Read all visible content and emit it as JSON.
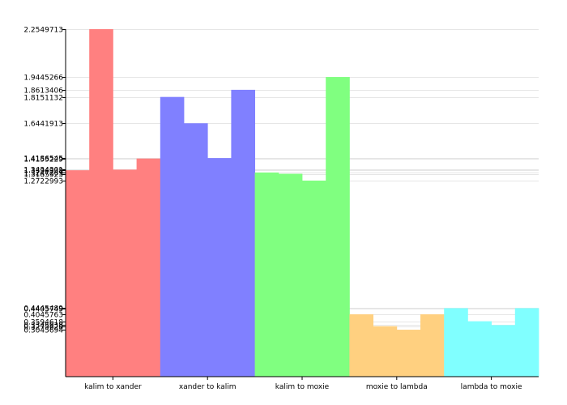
{
  "chart_data": {
    "type": "bar",
    "title": "",
    "xlabel": "",
    "ylabel": "",
    "ylim": [
      0,
      2.2549713
    ],
    "grid": true,
    "legend": "none",
    "categories": [
      "kalim to xander",
      "xander to kalim",
      "kalim to moxie",
      "moxie to lambda",
      "lambda to moxie"
    ],
    "groups": [
      {
        "category": "kalim to xander",
        "color": "#ff8080",
        "values": [
          1.3394,
          2.2549713,
          1.3434,
          1.4155
        ]
      },
      {
        "category": "xander to kalim",
        "color": "#8080ff",
        "values": [
          1.8151132,
          1.6441913,
          1.41865,
          1.8613406
        ]
      },
      {
        "category": "kalim to moxie",
        "color": "#80ff80",
        "values": [
          1.3247,
          1.3165,
          1.2722993,
          1.9445266
        ]
      },
      {
        "category": "moxie to lambda",
        "color": "#ffd080",
        "values": [
          0.4045,
          0.3275,
          0.3045,
          0.4045
        ]
      },
      {
        "category": "lambda to moxie",
        "color": "#80ffff",
        "values": [
          0.4445,
          0.3595,
          0.3345,
          0.4445
        ]
      }
    ],
    "y_ticks": [
      {
        "value": 2.2549713,
        "label": "2.2549713"
      },
      {
        "value": 1.9445266,
        "label": "1.9445266"
      },
      {
        "value": 1.8613406,
        "label": "1.8613406"
      },
      {
        "value": 1.8151132,
        "label": "1.8151132"
      },
      {
        "value": 1.6441913,
        "label": "1.6441913"
      },
      {
        "value": 1.41865,
        "label": "1.4186545"
      },
      {
        "value": 1.4155,
        "label": "1.4155229"
      },
      {
        "value": 1.3434,
        "label": "1.3434301"
      },
      {
        "value": 1.3394,
        "label": "1.3394938"
      },
      {
        "value": 1.3247,
        "label": "1.3247269"
      },
      {
        "value": 1.3165,
        "label": "1.3165923"
      },
      {
        "value": 1.2722993,
        "label": "1.2722993"
      },
      {
        "value": 0.4445,
        "label": "0.4445489"
      },
      {
        "value": 0.4405,
        "label": "0.4405749"
      },
      {
        "value": 0.4045,
        "label": "0.4045763"
      },
      {
        "value": 0.3595,
        "label": "0.3594618"
      },
      {
        "value": 0.3345,
        "label": "0.3345938"
      },
      {
        "value": 0.3275,
        "label": "0.3275628"
      },
      {
        "value": 0.3045,
        "label": "0.3045694"
      }
    ]
  }
}
